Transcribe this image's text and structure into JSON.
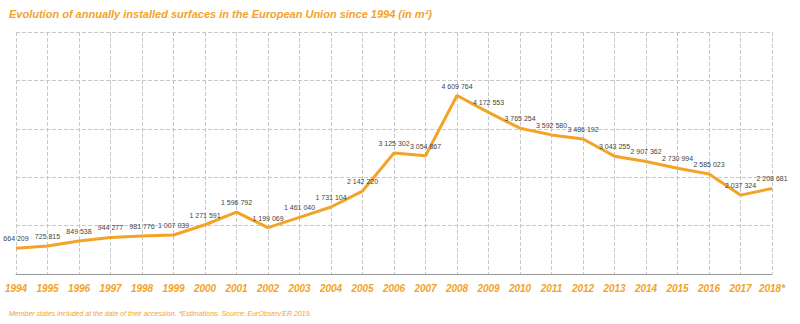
{
  "chart_data": {
    "type": "line",
    "title": "Evolution of annually installed surfaces in the European Union since 1994 (in m²)",
    "footnote": "Member states included at the date of their accession. *Estimations. Source: EurObserv'ER 2019.",
    "categories": [
      "1994",
      "1995",
      "1996",
      "1997",
      "1998",
      "1999",
      "2000",
      "2001",
      "2002",
      "2003",
      "2004",
      "2005",
      "2006",
      "2007",
      "2008",
      "2009",
      "2010",
      "2011",
      "2012",
      "2013",
      "2014",
      "2015",
      "2016",
      "2017",
      "2018*"
    ],
    "values": [
      664209,
      725815,
      849538,
      944277,
      981776,
      1007039,
      1271591,
      1596792,
      1199069,
      1461040,
      1731104,
      2142220,
      3125302,
      3054867,
      4609764,
      4172553,
      3765254,
      3592580,
      3486192,
      3043255,
      2907362,
      2730994,
      2585023,
      2037324,
      2208681
    ],
    "value_labels": [
      "664 209",
      "725 815",
      "849 538",
      "944 277",
      "981 776",
      "1 007 039",
      "1 271 591",
      "1 596 792",
      "1 199 069",
      "1 461 040",
      "1 731 104",
      "2 142 220",
      "3 125 302",
      "3 054 867",
      "4 609 764",
      "4 172 553",
      "3 765 254",
      "3 592 580",
      "3 486 192",
      "3 043 255",
      "2 907 362",
      "2 730 994",
      "2 585 023",
      "2 037 324",
      "2 208 681"
    ],
    "color": "#f2a328",
    "ylim": [
      0,
      6250000
    ],
    "yticks": [
      0,
      1250000,
      2500000,
      3750000,
      5000000,
      6250000
    ],
    "grid": true,
    "data_labels": true,
    "tick_labels": "x"
  }
}
